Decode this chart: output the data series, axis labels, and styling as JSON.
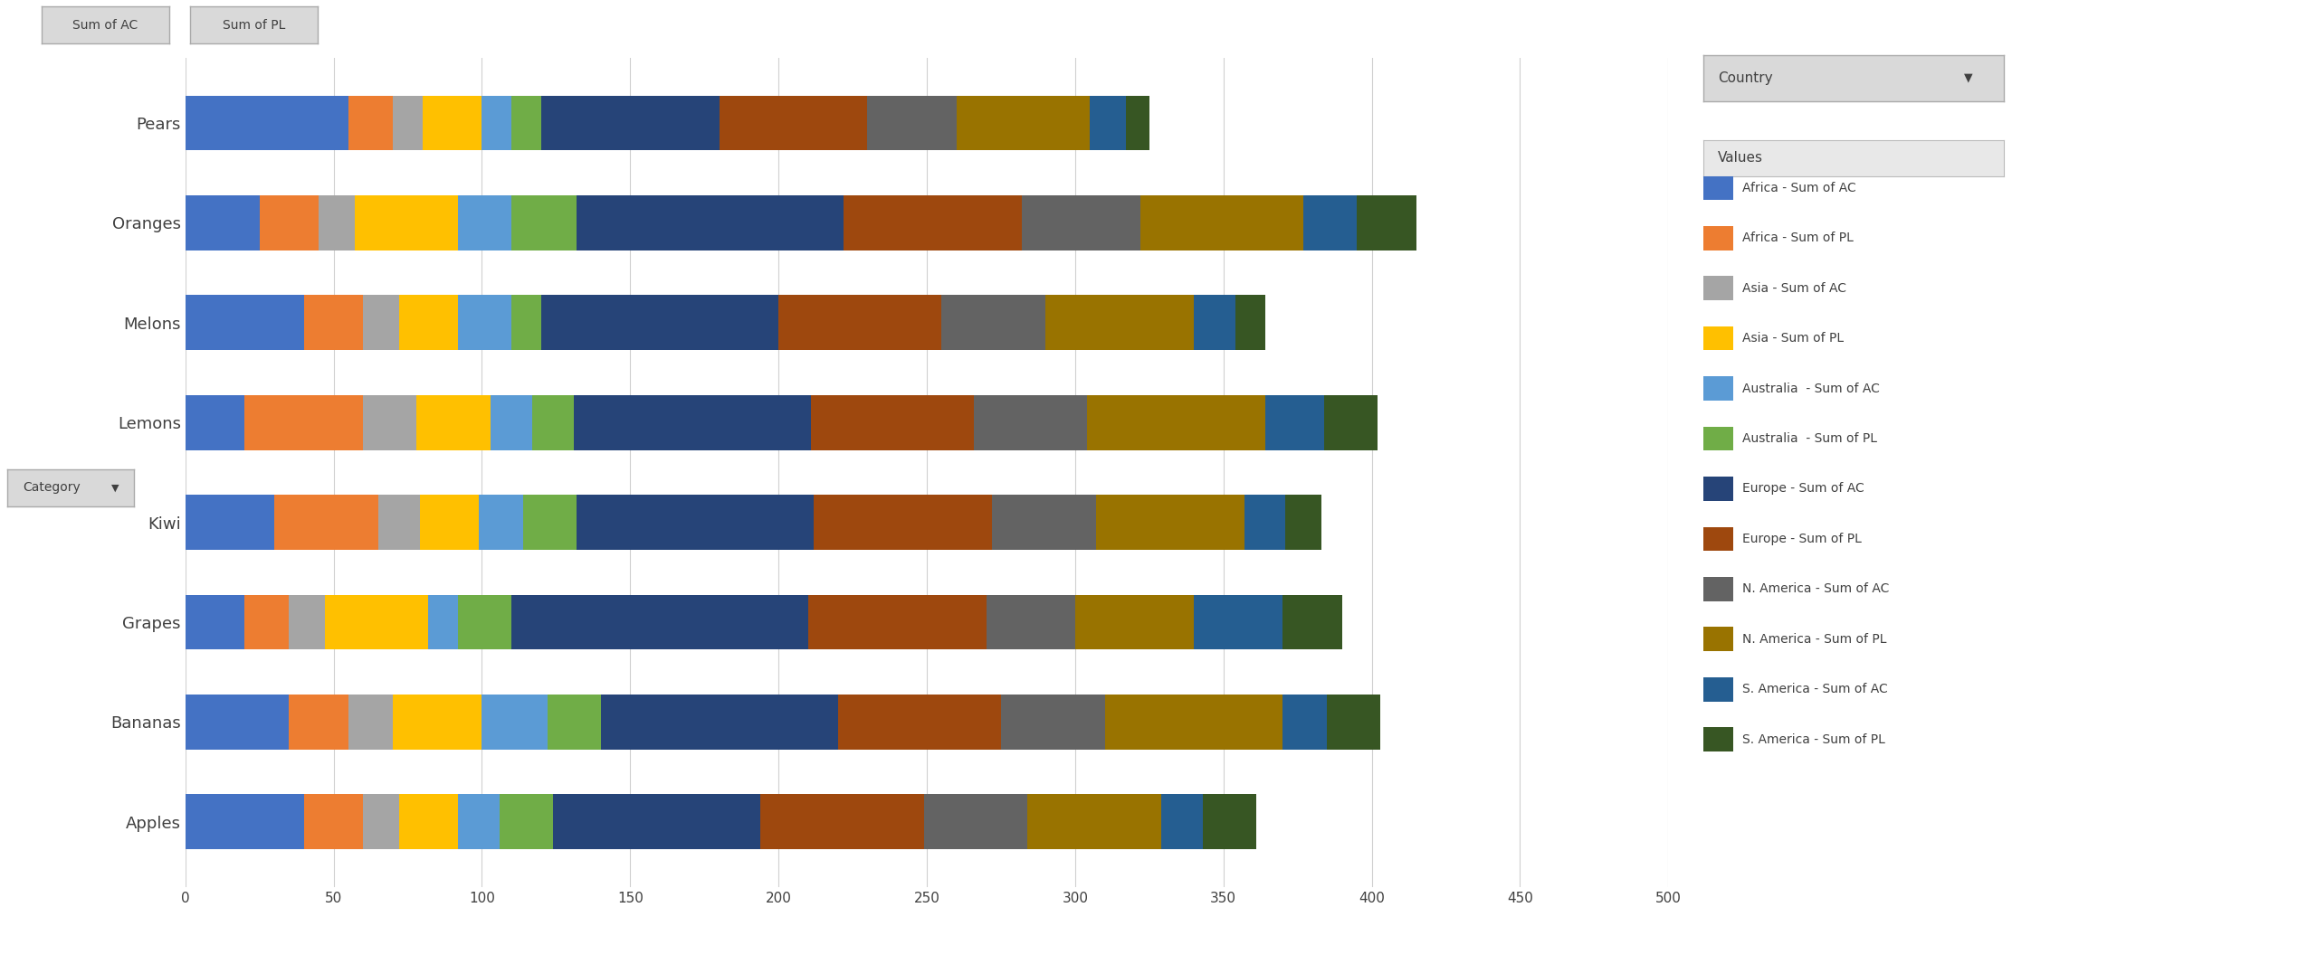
{
  "categories": [
    "Pears",
    "Oranges",
    "Melons",
    "Lemons",
    "Kiwi",
    "Grapes",
    "Bananas",
    "Apples"
  ],
  "series": [
    {
      "label": "Africa - Sum of AC",
      "color": "#4472C4",
      "values": [
        55,
        25,
        40,
        20,
        30,
        20,
        35,
        40
      ]
    },
    {
      "label": "Africa - Sum of PL",
      "color": "#ED7D31",
      "values": [
        15,
        20,
        20,
        40,
        35,
        15,
        20,
        20
      ]
    },
    {
      "label": "Asia - Sum of AC",
      "color": "#A5A5A5",
      "values": [
        10,
        12,
        12,
        18,
        14,
        12,
        15,
        12
      ]
    },
    {
      "label": "Asia - Sum of PL",
      "color": "#FFC000",
      "values": [
        20,
        35,
        20,
        25,
        20,
        35,
        30,
        20
      ]
    },
    {
      "label": "Australia  - Sum of AC",
      "color": "#5B9BD5",
      "values": [
        10,
        18,
        18,
        14,
        15,
        10,
        22,
        14
      ]
    },
    {
      "label": "Australia  - Sum of PL",
      "color": "#70AD47",
      "values": [
        10,
        22,
        10,
        14,
        18,
        18,
        18,
        18
      ]
    },
    {
      "label": "Europe - Sum of AC",
      "color": "#264478",
      "values": [
        60,
        90,
        80,
        80,
        80,
        100,
        80,
        70
      ]
    },
    {
      "label": "Europe - Sum of PL",
      "color": "#9E480E",
      "values": [
        50,
        60,
        55,
        55,
        60,
        60,
        55,
        55
      ]
    },
    {
      "label": "N. America - Sum of AC",
      "color": "#636363",
      "values": [
        30,
        40,
        35,
        38,
        35,
        30,
        35,
        35
      ]
    },
    {
      "label": "N. America - Sum of PL",
      "color": "#997300",
      "values": [
        45,
        55,
        50,
        60,
        50,
        40,
        60,
        45
      ]
    },
    {
      "label": "S. America - Sum of AC",
      "color": "#255E91",
      "values": [
        12,
        18,
        14,
        20,
        14,
        30,
        15,
        14
      ]
    },
    {
      "label": "S. America - Sum of PL",
      "color": "#375623",
      "values": [
        8,
        20,
        10,
        18,
        12,
        20,
        18,
        18
      ]
    }
  ],
  "xlim": [
    0,
    500
  ],
  "xticks": [
    0,
    50,
    100,
    150,
    200,
    250,
    300,
    350,
    400,
    450,
    500
  ],
  "bar_height": 0.55,
  "legend_title": "Country",
  "legend_values_label": "Values",
  "background_color": "#FFFFFF",
  "grid_color": "#D0D0D0",
  "filter_buttons": [
    "Sum of AC",
    "Sum of PL"
  ],
  "category_button": "Category"
}
